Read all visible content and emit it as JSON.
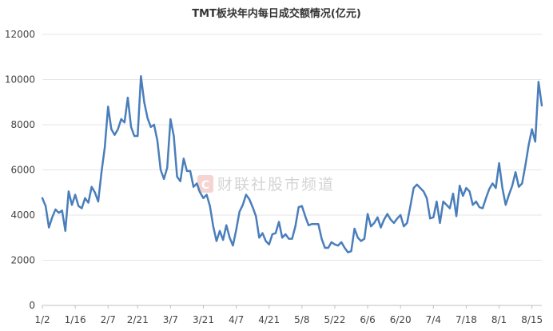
{
  "chart_data": {
    "type": "line",
    "title": "TMT板块年内每日成交额情况(亿元)",
    "xlabel": "",
    "ylabel": "",
    "ylim": [
      0,
      12000
    ],
    "yticks": [
      0,
      2000,
      4000,
      6000,
      8000,
      10000,
      12000
    ],
    "x_tick_labels": [
      "1/2",
      "1/16",
      "2/7",
      "2/21",
      "3/7",
      "3/21",
      "4/7",
      "4/21",
      "5/8",
      "5/22",
      "6/6",
      "6/20",
      "7/4",
      "7/18",
      "8/1",
      "8/15"
    ],
    "x_tick_indices": [
      0,
      10,
      20,
      29,
      39,
      49,
      59,
      69,
      79,
      89,
      99,
      109,
      119,
      129,
      139,
      149
    ],
    "grid": true,
    "series": [
      {
        "values": [
          4750,
          4400,
          3450,
          3900,
          4250,
          4100,
          4200,
          3300,
          5050,
          4450,
          4900,
          4400,
          4300,
          4750,
          4550,
          5250,
          5000,
          4600,
          5900,
          7000,
          8800,
          7800,
          7550,
          7800,
          8250,
          8100,
          9200,
          7900,
          7500,
          7500,
          10150,
          9000,
          8300,
          7900,
          8000,
          7300,
          6000,
          5600,
          6100,
          8250,
          7500,
          5700,
          5500,
          6500,
          5950,
          5950,
          5250,
          5400,
          5000,
          4750,
          4900,
          4400,
          3500,
          2850,
          3300,
          2900,
          3550,
          3000,
          2650,
          3350,
          4150,
          4450,
          4900,
          4700,
          4350,
          3950,
          3000,
          3200,
          2850,
          2700,
          3150,
          3200,
          3700,
          3000,
          3150,
          2950,
          2950,
          3500,
          4350,
          4400,
          3950,
          3550,
          3600,
          3600,
          3600,
          2950,
          2550,
          2550,
          2800,
          2700,
          2650,
          2800,
          2550,
          2350,
          2400,
          3400,
          3000,
          2850,
          2950,
          4050,
          3500,
          3650,
          3900,
          3450,
          3800,
          4050,
          3800,
          3650,
          3850,
          4000,
          3500,
          3650,
          4400,
          5200,
          5350,
          5200,
          5050,
          4750,
          3850,
          3900,
          4600,
          3650,
          4600,
          4450,
          4300,
          4950,
          3950,
          5300,
          4850,
          5200,
          5050,
          4450,
          4600,
          4350,
          4300,
          4750,
          5150,
          5400,
          5200,
          6300,
          5200,
          4450,
          4900,
          5300,
          5900,
          5250,
          5400,
          6200,
          7100,
          7800,
          7250,
          9900,
          8850
        ]
      }
    ],
    "colors": {
      "line": "#4a7ebb",
      "watermark_logo": "#e8a09b"
    }
  },
  "watermark": {
    "text": "财联社股市频道",
    "logo_char": "C"
  }
}
